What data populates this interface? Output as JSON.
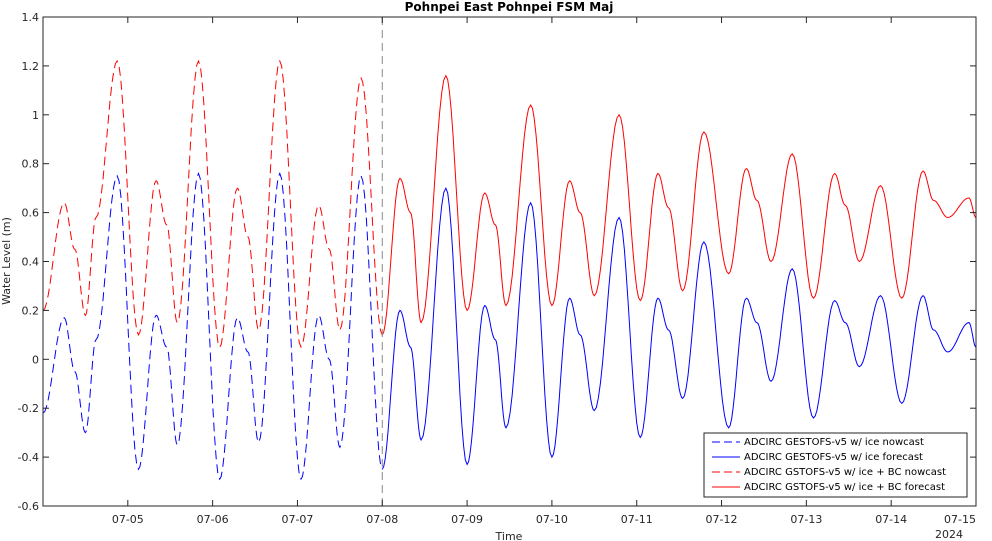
{
  "chart_data": {
    "type": "line",
    "title": "Pohnpei East Pohnpei FSM Maj",
    "xlabel": "Time",
    "ylabel": "Water Level (m)",
    "x_year_label": "2024",
    "xlim": [
      "2024-07-04T00:00",
      "2024-07-15T00:00"
    ],
    "ylim": [
      -0.6,
      1.4
    ],
    "x_tick_labels": [
      "07-05",
      "07-06",
      "07-07",
      "07-08",
      "07-09",
      "07-10",
      "07-11",
      "07-12",
      "07-13",
      "07-14",
      "07-15"
    ],
    "y_tick_labels": [
      "-0.6",
      "-0.4",
      "-0.2",
      "0",
      "0.2",
      "0.4",
      "0.6",
      "0.8",
      "1",
      "1.2",
      "1.4"
    ],
    "nowcast_forecast_divider": "2024-07-08T00:00",
    "grid": false,
    "legend_position": "bottom-right",
    "series": [
      {
        "name": "ADCIRC GESTOFS-v5 w/ ice nowcast",
        "color": "#0000ff",
        "style": "dashed",
        "x": [
          "07-04 00:00",
          "07-04 06:00",
          "07-04 09:00",
          "07-04 12:00",
          "07-04 15:00",
          "07-04 21:00",
          "07-05 03:00",
          "07-05 08:00",
          "07-05 11:00",
          "07-05 14:00",
          "07-05 20:00",
          "07-06 02:00",
          "07-06 07:00",
          "07-06 10:00",
          "07-06 13:00",
          "07-06 19:00",
          "07-07 01:00",
          "07-07 06:00",
          "07-07 09:00",
          "07-07 12:00",
          "07-07 18:00",
          "07-08 00:00"
        ],
        "y": [
          -0.22,
          0.17,
          -0.05,
          -0.3,
          0.08,
          0.75,
          -0.45,
          0.18,
          0.05,
          -0.35,
          0.76,
          -0.49,
          0.17,
          0.03,
          -0.34,
          0.76,
          -0.49,
          0.18,
          0.0,
          -0.36,
          0.75,
          -0.45
        ]
      },
      {
        "name": "ADCIRC GESTOFS-v5 w/ ice forecast",
        "color": "#0000ff",
        "style": "solid",
        "x": [
          "07-08 00:00",
          "07-08 05:00",
          "07-08 08:00",
          "07-08 11:00",
          "07-08 18:00",
          "07-09 00:00",
          "07-09 05:00",
          "07-09 08:00",
          "07-09 11:00",
          "07-09 18:00",
          "07-10 00:00",
          "07-10 05:00",
          "07-10 08:00",
          "07-10 12:00",
          "07-10 19:00",
          "07-11 01:00",
          "07-11 06:00",
          "07-11 09:00",
          "07-11 13:00",
          "07-11 19:00",
          "07-12 02:00",
          "07-12 07:00",
          "07-12 10:00",
          "07-12 14:00",
          "07-12 20:00",
          "07-13 02:00",
          "07-13 08:00",
          "07-13 11:00",
          "07-13 15:00",
          "07-13 21:00",
          "07-14 03:00",
          "07-14 09:00",
          "07-14 12:00",
          "07-14 16:00",
          "07-14 22:00",
          "07-15 00:00"
        ],
        "y": [
          -0.45,
          0.2,
          0.05,
          -0.33,
          0.7,
          -0.43,
          0.22,
          0.08,
          -0.28,
          0.64,
          -0.4,
          0.25,
          0.1,
          -0.21,
          0.58,
          -0.32,
          0.25,
          0.12,
          -0.16,
          0.48,
          -0.28,
          0.25,
          0.15,
          -0.09,
          0.37,
          -0.24,
          0.24,
          0.15,
          -0.03,
          0.26,
          -0.18,
          0.26,
          0.12,
          0.03,
          0.15,
          0.05
        ]
      },
      {
        "name": "ADCIRC GSTOFS-v5 w/ ice + BC nowcast",
        "color": "#ff0000",
        "style": "dashed",
        "x": [
          "07-04 00:00",
          "07-04 06:00",
          "07-04 09:00",
          "07-04 12:00",
          "07-04 15:00",
          "07-04 21:00",
          "07-05 03:00",
          "07-05 08:00",
          "07-05 11:00",
          "07-05 14:00",
          "07-05 20:00",
          "07-06 02:00",
          "07-06 07:00",
          "07-06 10:00",
          "07-06 13:00",
          "07-06 19:00",
          "07-07 01:00",
          "07-07 06:00",
          "07-07 09:00",
          "07-07 12:00",
          "07-07 18:00",
          "07-08 00:00"
        ],
        "y": [
          0.2,
          0.64,
          0.45,
          0.18,
          0.58,
          1.22,
          0.1,
          0.73,
          0.55,
          0.15,
          1.22,
          0.05,
          0.7,
          0.5,
          0.12,
          1.22,
          0.05,
          0.63,
          0.45,
          0.12,
          1.15,
          0.1
        ]
      },
      {
        "name": "ADCIRC GSTOFS-v5 w/ ice + BC forecast",
        "color": "#ff0000",
        "style": "solid",
        "x": [
          "07-08 00:00",
          "07-08 05:00",
          "07-08 08:00",
          "07-08 11:00",
          "07-08 18:00",
          "07-09 00:00",
          "07-09 05:00",
          "07-09 08:00",
          "07-09 11:00",
          "07-09 18:00",
          "07-10 00:00",
          "07-10 05:00",
          "07-10 08:00",
          "07-10 12:00",
          "07-10 19:00",
          "07-11 01:00",
          "07-11 06:00",
          "07-11 09:00",
          "07-11 13:00",
          "07-11 19:00",
          "07-12 02:00",
          "07-12 07:00",
          "07-12 10:00",
          "07-12 14:00",
          "07-12 20:00",
          "07-13 02:00",
          "07-13 08:00",
          "07-13 11:00",
          "07-13 15:00",
          "07-13 21:00",
          "07-14 03:00",
          "07-14 09:00",
          "07-14 12:00",
          "07-14 16:00",
          "07-14 22:00",
          "07-15 00:00"
        ],
        "y": [
          0.1,
          0.74,
          0.6,
          0.15,
          1.16,
          0.2,
          0.68,
          0.55,
          0.22,
          1.04,
          0.22,
          0.73,
          0.6,
          0.26,
          1.0,
          0.24,
          0.76,
          0.62,
          0.28,
          0.93,
          0.35,
          0.78,
          0.65,
          0.4,
          0.84,
          0.25,
          0.76,
          0.63,
          0.4,
          0.71,
          0.25,
          0.77,
          0.65,
          0.58,
          0.66,
          0.58
        ]
      }
    ]
  }
}
